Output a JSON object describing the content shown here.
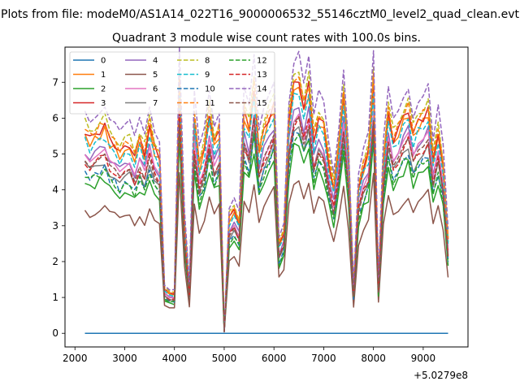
{
  "chart_data": {
    "type": "line",
    "suptitle": "Plots from file: modeM0/AS1A14_022T16_9000006532_55146cztM0_level2_quad_clean.evt",
    "title": "Quadrant 3 module wise count rates with 100.0s bins.",
    "xlabel": "",
    "ylabel": "",
    "x_offset_label": "+5.0279e8",
    "x_ticks": [
      2000,
      3000,
      4000,
      5000,
      6000,
      7000,
      8000,
      9000
    ],
    "y_ticks": [
      0,
      1,
      2,
      3,
      4,
      5,
      6,
      7
    ],
    "xlim": [
      1800,
      9900
    ],
    "ylim": [
      -0.38,
      7.98
    ],
    "legend_position": "upper left",
    "x": [
      2200,
      2300,
      2400,
      2500,
      2600,
      2700,
      2800,
      2900,
      3000,
      3100,
      3200,
      3300,
      3400,
      3500,
      3600,
      3700,
      3800,
      3900,
      4000,
      4100,
      4200,
      4300,
      4400,
      4500,
      4600,
      4700,
      4800,
      4900,
      5000,
      5100,
      5200,
      5300,
      5400,
      5500,
      5600,
      5700,
      5800,
      5900,
      6000,
      6100,
      6200,
      6300,
      6400,
      6500,
      6600,
      6700,
      6800,
      6900,
      7000,
      7100,
      7200,
      7300,
      7400,
      7500,
      7600,
      7700,
      7800,
      7900,
      8000,
      8100,
      8200,
      8300,
      8400,
      8500,
      8600,
      8700,
      8800,
      8900,
      9000,
      9100,
      9200,
      9300,
      9400,
      9500
    ],
    "base_profile": [
      4.6,
      4.4,
      4.5,
      4.6,
      4.7,
      4.4,
      4.3,
      4.1,
      4.2,
      4.3,
      4.0,
      4.4,
      4.1,
      4.7,
      4.2,
      4.0,
      1.0,
      0.9,
      0.9,
      5.8,
      2.5,
      1.0,
      4.9,
      3.8,
      4.2,
      5.0,
      4.3,
      4.6,
      0.05,
      2.6,
      2.8,
      2.5,
      5.0,
      4.6,
      5.6,
      4.1,
      4.6,
      4.9,
      5.2,
      2.0,
      2.3,
      4.8,
      5.6,
      5.8,
      5.1,
      5.6,
      4.4,
      4.9,
      4.7,
      3.9,
      3.3,
      4.2,
      5.5,
      3.9,
      1.0,
      3.3,
      3.8,
      4.1,
      5.7,
      1.1,
      3.9,
      5.0,
      4.4,
      4.6,
      4.9,
      5.1,
      4.5,
      4.8,
      4.9,
      5.1,
      3.9,
      4.6,
      3.8,
      2.1
    ],
    "series": [
      {
        "name": "0",
        "color": "#1f77b4",
        "dash": false,
        "scale": 0.0,
        "values": [
          0,
          0,
          0,
          0,
          0,
          0,
          0,
          0,
          0,
          0,
          0,
          0,
          0,
          0,
          0,
          0,
          0,
          0,
          0,
          0,
          0,
          0,
          0,
          0,
          0,
          0,
          0,
          0,
          0,
          0,
          0,
          0,
          0,
          0,
          0,
          0,
          0,
          0,
          0,
          0,
          0,
          0,
          0,
          0,
          0,
          0,
          0,
          0,
          0,
          0,
          0,
          0,
          0,
          0,
          0,
          0,
          0,
          0,
          0,
          0,
          0,
          0,
          0,
          0,
          0,
          0,
          0,
          0,
          0,
          0,
          0,
          0,
          0,
          0
        ]
      },
      {
        "name": "1",
        "color": "#ff7f0e",
        "dash": false,
        "scale": 1.2
      },
      {
        "name": "2",
        "color": "#2ca02c",
        "dash": false,
        "scale": 0.92
      },
      {
        "name": "3",
        "color": "#d62728",
        "dash": false,
        "scale": 1.23
      },
      {
        "name": "4",
        "color": "#9467bd",
        "dash": false,
        "scale": 1.11
      },
      {
        "name": "5",
        "color": "#8c564b",
        "dash": false,
        "scale": 0.76
      },
      {
        "name": "6",
        "color": "#e377c2",
        "dash": false,
        "scale": 1.08
      },
      {
        "name": "7",
        "color": "#7f7f7f",
        "dash": false,
        "scale": 1.02
      },
      {
        "name": "8",
        "color": "#bcbd22",
        "dash": true,
        "scale": 1.28
      },
      {
        "name": "9",
        "color": "#17becf",
        "dash": true,
        "scale": 1.17
      },
      {
        "name": "10",
        "color": "#1f77b4",
        "dash": true,
        "scale": 0.98
      },
      {
        "name": "11",
        "color": "#ff7f0e",
        "dash": true,
        "scale": 1.25
      },
      {
        "name": "12",
        "color": "#2ca02c",
        "dash": true,
        "scale": 0.97
      },
      {
        "name": "13",
        "color": "#d62728",
        "dash": true,
        "scale": 1.05
      },
      {
        "name": "14",
        "color": "#9467bd",
        "dash": true,
        "scale": 1.36
      },
      {
        "name": "15",
        "color": "#8c564b",
        "dash": true,
        "scale": 1.04
      }
    ]
  }
}
